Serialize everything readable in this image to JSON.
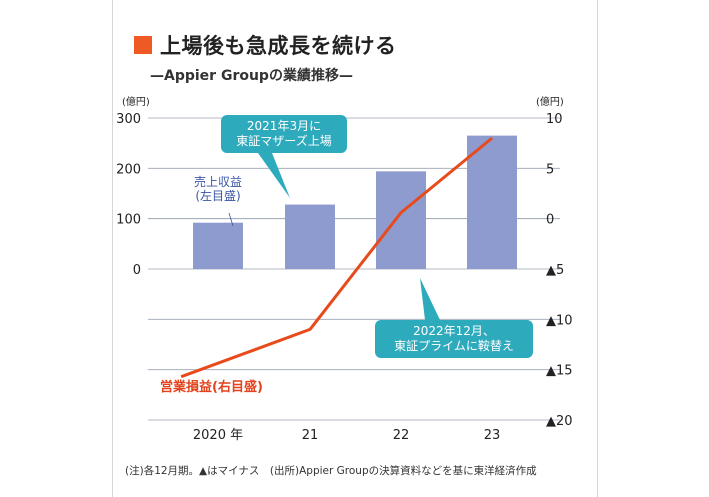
{
  "header": {
    "title": "上場後も急成長を続ける",
    "subtitle": "—Appier Groupの業績推移—",
    "title_marker_color": "#ee5a24"
  },
  "footnote": "(注)各12月期。▲はマイナス　(出所)Appier Groupの決算資料などを基に東洋経済作成",
  "chart_data": {
    "type": "bar+line",
    "categories": [
      "2020 年",
      "21",
      "22",
      "23"
    ],
    "left_axis": {
      "unit": "(億円)",
      "ylim": [
        -300,
        300
      ],
      "tick_labels": [
        "300",
        "200",
        "100",
        "0"
      ],
      "tick_values": [
        300,
        200,
        100,
        0
      ]
    },
    "right_axis": {
      "unit": "(億円)",
      "ylim": [
        -20,
        10
      ],
      "tick_labels": [
        "10",
        "5",
        "0",
        "▲5",
        "▲10",
        "▲15",
        "▲20"
      ],
      "tick_values": [
        10,
        5,
        0,
        -5,
        -10,
        -15,
        -20
      ]
    },
    "series": [
      {
        "name": "売上収益(左目盛)",
        "label_lines": [
          "売上収益",
          "(左目盛)"
        ],
        "type": "bar",
        "axis": "left",
        "color": "#8e9bcf",
        "values": [
          92,
          128,
          194,
          265
        ]
      },
      {
        "name": "営業損益(右目盛)",
        "label_lines": [
          "営業損益(右目盛)"
        ],
        "type": "line",
        "axis": "right",
        "color": "#e84a1c",
        "x_positions": [
          -0.4,
          1.0,
          2.0,
          3.0
        ],
        "values": [
          -15.7,
          -11.0,
          0.6,
          8.0
        ]
      }
    ],
    "annotations": [
      {
        "lines": [
          "2021年3月に",
          "東証マザーズ上場"
        ],
        "category_index": 1,
        "color": "#2eaabd"
      },
      {
        "lines": [
          "2022年12月、",
          "東証プライムに鞍替え"
        ],
        "category_index": 2,
        "color": "#2eaabd"
      }
    ],
    "grid": true,
    "grid_color": "#9aa4b0"
  }
}
